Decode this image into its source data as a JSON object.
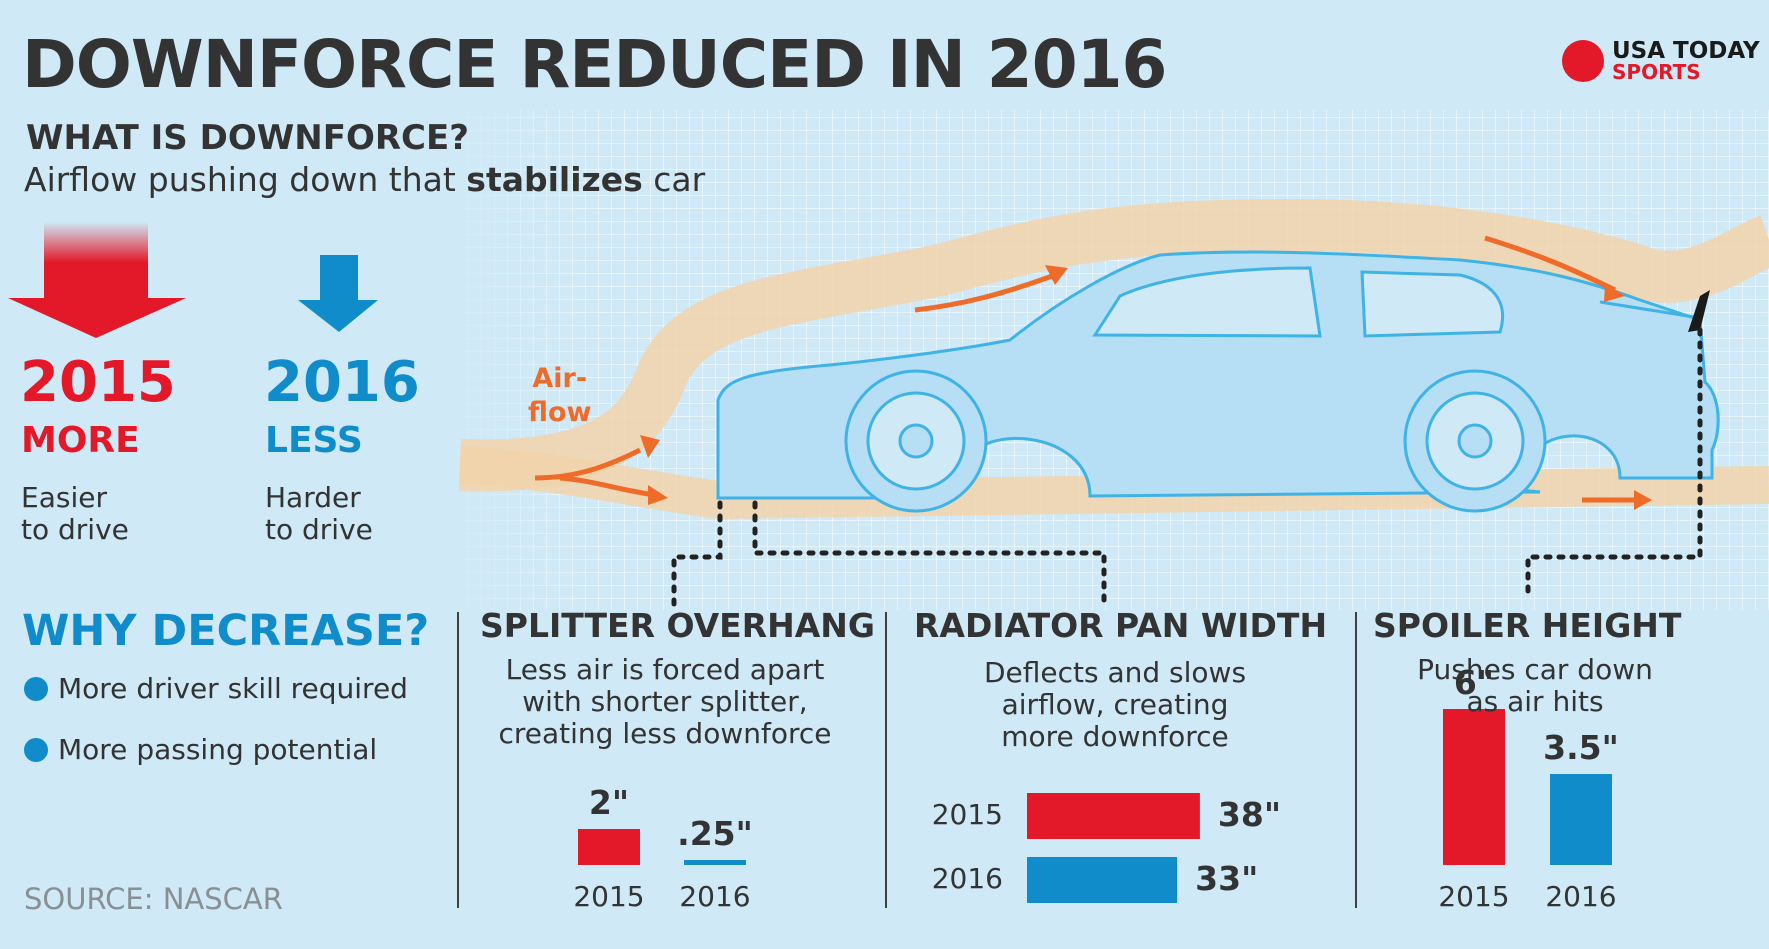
{
  "header": {
    "title": "DOWNFORCE REDUCED IN 2016",
    "logo_line1": "USA TODAY",
    "logo_line2": "SPORTS"
  },
  "what": {
    "heading": "WHAT IS DOWNFORCE?",
    "sub_before": "Airflow pushing down that ",
    "sub_bold": "stabilizes",
    "sub_after": " car"
  },
  "compare": [
    {
      "year": "2015",
      "level": "MORE",
      "desc_line1": "Easier",
      "desc_line2": "to drive",
      "color": "#e3192a"
    },
    {
      "year": "2016",
      "level": "LESS",
      "desc_line1": "Harder",
      "desc_line2": "to drive",
      "color": "#0f8cc9"
    }
  ],
  "airflow": {
    "line1": "Air-",
    "line2": "flow"
  },
  "why": {
    "heading": "WHY DECREASE?",
    "items": [
      "More driver skill required",
      "More passing potential"
    ]
  },
  "source": "SOURCE: NASCAR",
  "colors": {
    "red": "#e3192a",
    "blue": "#0f8cc9",
    "orange": "#ef6b2a",
    "background": "#cfe9f7",
    "text": "#333333"
  },
  "chart_data": [
    {
      "type": "bar",
      "title": "SPLITTER OVERHANG",
      "subtitle_lines": [
        "Less air is forced apart",
        "with shorter splitter,",
        "creating less downforce"
      ],
      "categories": [
        "2015",
        "2016"
      ],
      "values": [
        2,
        0.25
      ],
      "labels": [
        "2\"",
        ".25\""
      ],
      "unit": "inches",
      "orientation": "vertical"
    },
    {
      "type": "bar",
      "title": "RADIATOR PAN WIDTH",
      "subtitle_lines": [
        "Deflects and slows",
        "airflow, creating",
        "more downforce"
      ],
      "categories": [
        "2015",
        "2016"
      ],
      "values": [
        38,
        33
      ],
      "labels": [
        "38\"",
        "33\""
      ],
      "unit": "inches",
      "orientation": "horizontal"
    },
    {
      "type": "bar",
      "title": "SPOILER HEIGHT",
      "subtitle_lines": [
        "Pushes car down",
        "as air hits"
      ],
      "categories": [
        "2015",
        "2016"
      ],
      "values": [
        6,
        3.5
      ],
      "labels": [
        "6\"",
        "3.5\""
      ],
      "unit": "inches",
      "orientation": "vertical"
    }
  ]
}
